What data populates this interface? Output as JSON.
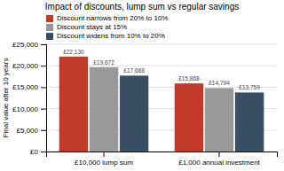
{
  "chart_data": {
    "type": "bar",
    "title": "Impact of discounts, lump sum vs regular savings",
    "ylabel": "Final value after 10 years",
    "categories": [
      "£10,000 lump sum",
      "£1,000 annual investment"
    ],
    "series": [
      {
        "name": "Discount narrows from 20% to 10%",
        "color": "#c0392b",
        "values": [
          22130,
          15868
        ],
        "value_labels": [
          "£22,130",
          "£15,868"
        ]
      },
      {
        "name": "Discount stays at 15%",
        "color": "#999999",
        "values": [
          19672,
          14794
        ],
        "value_labels": [
          "£19,672",
          "£14,794"
        ]
      },
      {
        "name": "Discount widens from 10% to 20%",
        "color": "#3a4f63",
        "values": [
          17688,
          13759
        ],
        "value_labels": [
          "£17,688",
          "£13,759"
        ]
      }
    ],
    "ylim": [
      0,
      25000
    ],
    "yticks": [
      {
        "value": 0,
        "label": "£0"
      },
      {
        "value": 5000,
        "label": "£5,000"
      },
      {
        "value": 10000,
        "label": "£10,000"
      },
      {
        "value": 15000,
        "label": "£15,000"
      },
      {
        "value": 20000,
        "label": "£20,000"
      },
      {
        "value": 25000,
        "label": "£25,000"
      }
    ],
    "grid": true,
    "legend": "top",
    "data_labels": true
  }
}
